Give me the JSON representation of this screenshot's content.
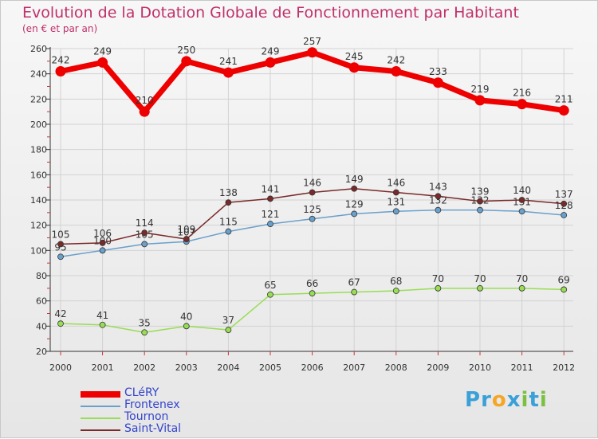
{
  "chart_data": {
    "type": "line",
    "title": "Evolution de la Dotation Globale de Fonctionnement par Habitant",
    "subtitle": "(en € et par an)",
    "x": [
      "2000",
      "2001",
      "2002",
      "2003",
      "2004",
      "2005",
      "2006",
      "2007",
      "2008",
      "2009",
      "2010",
      "2011",
      "2012"
    ],
    "ylim": [
      20,
      260
    ],
    "yticks": [
      "20",
      "40",
      "60",
      "80",
      "100",
      "120",
      "140",
      "160",
      "180",
      "200",
      "220",
      "240",
      "260"
    ],
    "grid": true,
    "legend_placement": "bottom-left",
    "series": [
      {
        "name": "CLéRY",
        "color": "#ee0000",
        "values": [
          242,
          249,
          210,
          250,
          241,
          249,
          257,
          245,
          242,
          233,
          219,
          216,
          211
        ],
        "labels": [
          "242",
          "249",
          "210",
          "250",
          "241",
          "249",
          "257",
          "245",
          "242",
          "233",
          "219",
          "216",
          "211"
        ]
      },
      {
        "name": "Frontenex",
        "color": "#6aa0cc",
        "values": [
          95,
          100,
          105,
          107,
          115,
          121,
          125,
          129,
          131,
          132,
          132,
          131,
          128
        ],
        "labels": [
          "95",
          "100",
          "105",
          "107",
          "115",
          "121",
          "125",
          "129",
          "131",
          "132",
          "132",
          "131",
          "128"
        ]
      },
      {
        "name": "Tournon",
        "color": "#99dd55",
        "values": [
          42,
          41,
          35,
          40,
          37,
          65,
          66,
          67,
          68,
          70,
          70,
          70,
          69
        ],
        "labels": [
          "42",
          "41",
          "35",
          "40",
          "37",
          "65",
          "66",
          "67",
          "68",
          "70",
          "70",
          "70",
          "69"
        ]
      },
      {
        "name": "Saint-Vital",
        "color": "#7a2a2a",
        "values": [
          105,
          106,
          114,
          109,
          138,
          141,
          146,
          149,
          146,
          143,
          139,
          140,
          137
        ],
        "labels": [
          "105",
          "106",
          "114",
          "109",
          "138",
          "141",
          "146",
          "149",
          "146",
          "143",
          "139",
          "140",
          "137"
        ]
      }
    ]
  },
  "legend": {
    "label_color": "#3344cc",
    "items": [
      "CLéRY",
      "Frontenex",
      "Tournon",
      "Saint-Vital"
    ]
  },
  "brand": {
    "letters": [
      "P",
      "r",
      "o",
      "x",
      "i",
      "t",
      "i"
    ],
    "colors": [
      "#3aa0d8",
      "#3aa0d8",
      "#f5a623",
      "#3aa0d8",
      "#7ac142",
      "#3aa0d8",
      "#7ac142"
    ]
  }
}
